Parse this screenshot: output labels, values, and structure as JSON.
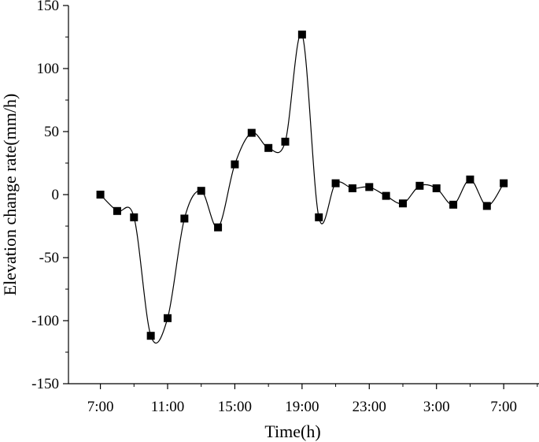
{
  "chart_data": {
    "type": "line",
    "title": "",
    "xlabel": "Time(h)",
    "ylabel": "Elevation change rate(mm/h)",
    "x_tick_labels": [
      "7:00",
      "11:00",
      "15:00",
      "19:00",
      "23:00",
      "3:00",
      "7:00"
    ],
    "x_tick_positions": [
      0,
      4,
      8,
      12,
      16,
      20,
      24
    ],
    "x_unit_note": "hours elapsed from first 7:00",
    "xlim": [
      -1.9,
      26.1
    ],
    "y_ticks": [
      150,
      100,
      50,
      0,
      -50,
      -100,
      -150
    ],
    "ylim": [
      -150,
      150
    ],
    "grid": false,
    "smooth": true,
    "series": [
      {
        "x": [
          0,
          1,
          2,
          3,
          4,
          5,
          6,
          7,
          8,
          9,
          10,
          11,
          12,
          13,
          14,
          15,
          16,
          17,
          18,
          19,
          20,
          21,
          22,
          23,
          24
        ],
        "values": [
          0,
          -13,
          -18,
          -112,
          -98,
          -19,
          3,
          -26,
          24,
          49,
          37,
          42,
          127,
          -18,
          9,
          5,
          6,
          -1,
          -7,
          7,
          5,
          -8,
          12,
          -9,
          9
        ]
      }
    ],
    "marker": "square",
    "line_color": "#000000",
    "marker_color": "#000000"
  }
}
